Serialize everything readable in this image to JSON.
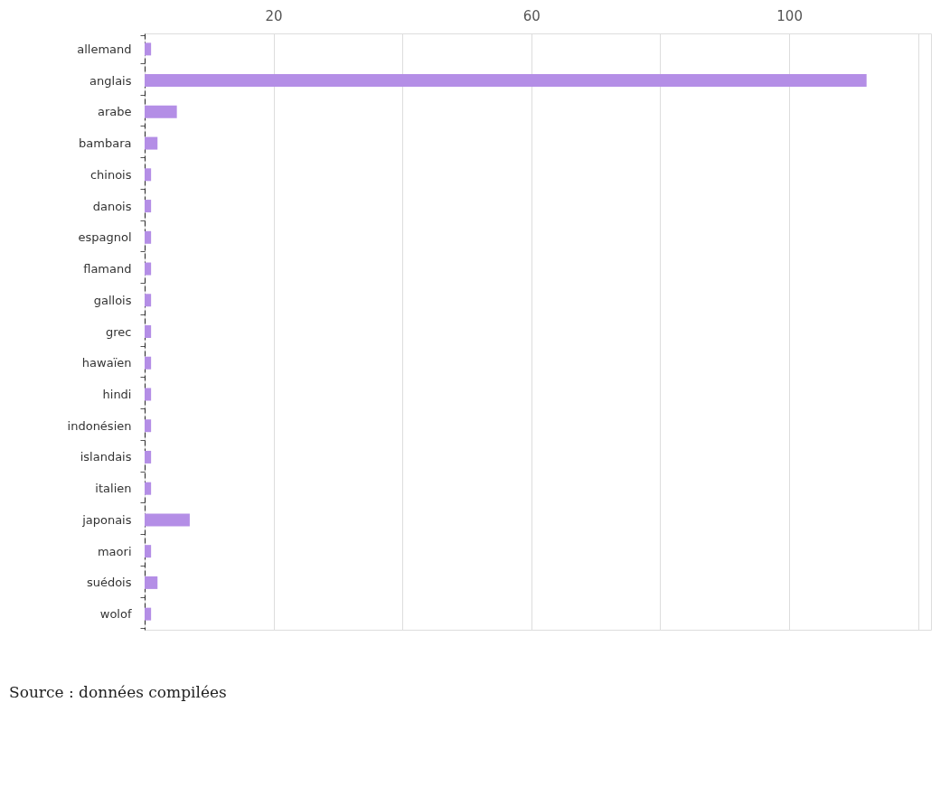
{
  "chart_data": {
    "type": "bar",
    "orientation": "horizontal",
    "categories": [
      "allemand",
      "anglais",
      "arabe",
      "bambara",
      "chinois",
      "danois",
      "espagnol",
      "flamand",
      "gallois",
      "grec",
      "hawaïen",
      "hindi",
      "indonésien",
      "islandais",
      "italien",
      "japonais",
      "maori",
      "suédois",
      "wolof"
    ],
    "values": [
      1,
      112,
      5,
      2,
      1,
      1,
      1,
      1,
      1,
      1,
      1,
      1,
      1,
      1,
      1,
      7,
      1,
      2,
      1
    ],
    "color": "#b48ee6",
    "xlim": [
      0,
      122
    ],
    "xticks": [
      20,
      {
        "value": 40,
        "label": null
      },
      60,
      {
        "value": 80,
        "label": null
      },
      100,
      {
        "value": 120,
        "label": null
      }
    ],
    "grid": "x",
    "annotations": [
      "Source : données compilées"
    ]
  }
}
